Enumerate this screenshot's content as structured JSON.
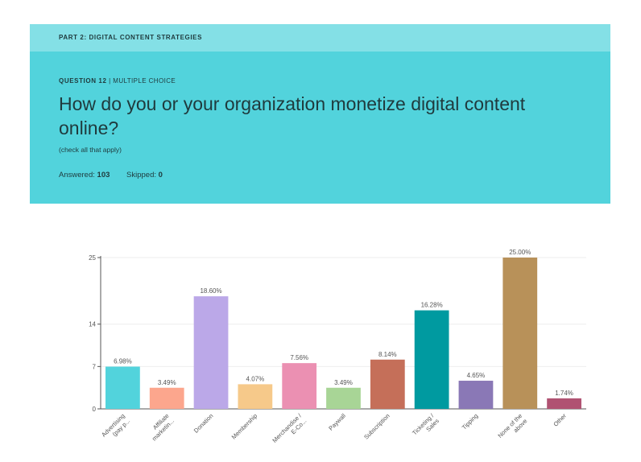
{
  "header": {
    "part_label": "PART 2: DIGITAL CONTENT STRATEGIES"
  },
  "question": {
    "number_label": "QUESTION 12",
    "separator": "|",
    "type_label": "MULTIPLE CHOICE",
    "title": "How do you or your organization monetize digital content online?",
    "note": "(check all that apply)",
    "answered_label": "Answered:",
    "answered_value": "103",
    "skipped_label": "Skipped:",
    "skipped_value": "0"
  },
  "colors": {
    "part_bar": "#84e0e6",
    "question_panel": "#52d3dc",
    "gridline": "#eeeeee",
    "axis": "#555555"
  },
  "chart_data": {
    "type": "bar",
    "categories": [
      "Advertising (pay p...",
      "Affiliate marketin...",
      "Donation",
      "Membership",
      "Merchandise / E-Co...",
      "Paywall",
      "Subscription",
      "Ticketing / Sales",
      "Tipping",
      "None of the above",
      "Other"
    ],
    "tick_lines": [
      [
        "Advertising",
        "(pay p..."
      ],
      [
        "Affiliate",
        "marketin..."
      ],
      [
        "Donation"
      ],
      [
        "Membership"
      ],
      [
        "Merchandise /",
        "E-Co..."
      ],
      [
        "Paywall"
      ],
      [
        "Subscription"
      ],
      [
        "Ticketing /",
        "Sales"
      ],
      [
        "Tipping"
      ],
      [
        "None of the",
        "above"
      ],
      [
        "Other"
      ]
    ],
    "values": [
      6.98,
      3.49,
      18.6,
      4.07,
      7.56,
      3.49,
      8.14,
      16.28,
      4.65,
      25.0,
      1.74
    ],
    "value_labels": [
      "6.98%",
      "3.49%",
      "18.60%",
      "4.07%",
      "7.56%",
      "3.49%",
      "8.14%",
      "16.28%",
      "4.65%",
      "25.00%",
      "1.74%"
    ],
    "colors": [
      "#52d3dc",
      "#fca68d",
      "#bba8e8",
      "#f6c98a",
      "#eb90b2",
      "#a8d596",
      "#c56f59",
      "#009aa0",
      "#8a78b6",
      "#b89159",
      "#b05272"
    ],
    "yticks": [
      0,
      7,
      14,
      25
    ],
    "ylim": [
      0,
      25
    ],
    "grid": true,
    "legend": "none"
  }
}
